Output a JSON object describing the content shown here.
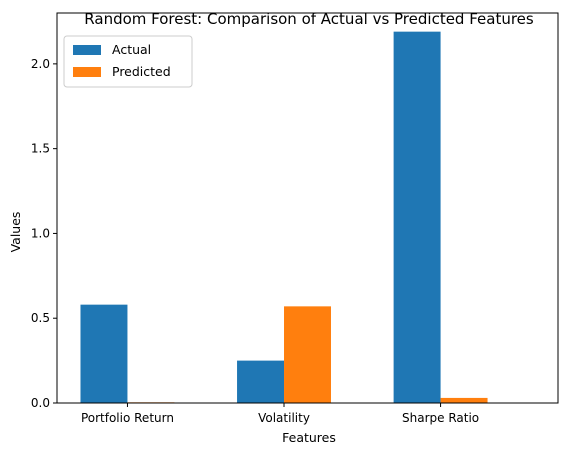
{
  "chart_data": {
    "type": "bar",
    "title": "Random Forest: Comparison of Actual vs Predicted Features",
    "xlabel": "Features",
    "ylabel": "Values",
    "categories": [
      "Portfolio Return",
      "Volatility",
      "Sharpe Ratio"
    ],
    "series": [
      {
        "name": "Actual",
        "values": [
          0.58,
          0.25,
          2.19
        ],
        "color": "#1f77b4"
      },
      {
        "name": "Predicted",
        "values": [
          0.004,
          0.57,
          0.03
        ],
        "color": "#ff7f0e"
      }
    ],
    "ylim": [
      0,
      2.3
    ],
    "yticks": [
      "0.0",
      "0.5",
      "1.0",
      "1.5",
      "2.0"
    ],
    "legend": "upper-left",
    "grid": false
  }
}
